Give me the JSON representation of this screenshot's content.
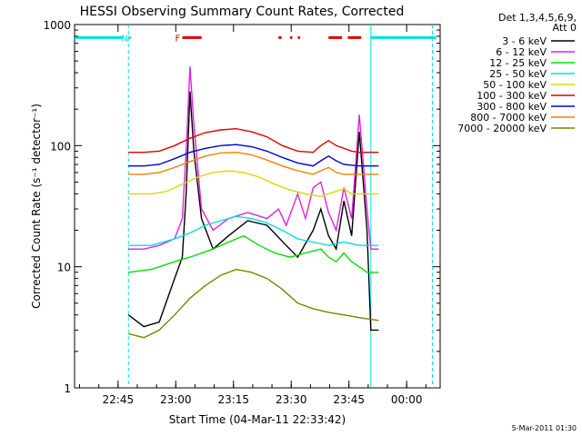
{
  "chart_data": {
    "type": "line",
    "title": "HESSI Observing Summary Count Rates, Corrected",
    "xlabel": "Start Time (04-Mar-11 22:33:42)",
    "ylabel": "Corrected Count Rate (s⁻¹ detector⁻¹)",
    "yscale": "log",
    "ylim": [
      1,
      1000
    ],
    "xlim_minutes_after_2233_42": [
      0,
      95
    ],
    "x_ticks": [
      {
        "label": "22:45",
        "t": 11.3
      },
      {
        "label": "23:00",
        "t": 26.3
      },
      {
        "label": "23:15",
        "t": 41.3
      },
      {
        "label": "23:30",
        "t": 56.3
      },
      {
        "label": "23:45",
        "t": 71.3
      },
      {
        "label": "00:00",
        "t": 86.3
      }
    ],
    "y_ticks": [
      {
        "label": "1",
        "v": 1
      },
      {
        "label": "10",
        "v": 10
      },
      {
        "label": "100",
        "v": 100
      },
      {
        "label": "1000",
        "v": 1000
      }
    ],
    "legend_header": [
      "Det 1,3,4,5,6,9,",
      "Att 0"
    ],
    "series": [
      {
        "name": "3 - 6 keV",
        "color": "#000000",
        "points": [
          [
            14,
            4
          ],
          [
            18,
            3.2
          ],
          [
            22,
            3.5
          ],
          [
            26,
            8
          ],
          [
            28,
            12
          ],
          [
            29,
            40
          ],
          [
            30,
            280
          ],
          [
            31,
            90
          ],
          [
            33,
            25
          ],
          [
            36,
            14
          ],
          [
            40,
            18
          ],
          [
            45,
            24
          ],
          [
            50,
            22
          ],
          [
            55,
            15
          ],
          [
            58,
            12
          ],
          [
            62,
            20
          ],
          [
            64,
            30
          ],
          [
            66,
            18
          ],
          [
            68,
            14
          ],
          [
            70,
            35
          ],
          [
            72,
            18
          ],
          [
            74,
            130
          ],
          [
            76,
            20
          ],
          [
            77,
            3
          ],
          [
            78,
            3
          ],
          [
            79,
            3
          ]
        ]
      },
      {
        "name": "6 - 12 keV",
        "color": "#e020e0",
        "points": [
          [
            14,
            14
          ],
          [
            18,
            14
          ],
          [
            22,
            15
          ],
          [
            26,
            17
          ],
          [
            28,
            25
          ],
          [
            29,
            90
          ],
          [
            30,
            450
          ],
          [
            31,
            150
          ],
          [
            33,
            30
          ],
          [
            36,
            20
          ],
          [
            40,
            25
          ],
          [
            45,
            28
          ],
          [
            50,
            25
          ],
          [
            53,
            30
          ],
          [
            55,
            22
          ],
          [
            58,
            40
          ],
          [
            60,
            25
          ],
          [
            62,
            45
          ],
          [
            64,
            50
          ],
          [
            66,
            28
          ],
          [
            68,
            20
          ],
          [
            70,
            45
          ],
          [
            72,
            25
          ],
          [
            74,
            180
          ],
          [
            76,
            30
          ],
          [
            77,
            14
          ],
          [
            79,
            14
          ]
        ]
      },
      {
        "name": "12 - 25 keV",
        "color": "#00e000",
        "points": [
          [
            14,
            9
          ],
          [
            20,
            9.5
          ],
          [
            26,
            11
          ],
          [
            30,
            12
          ],
          [
            36,
            14
          ],
          [
            40,
            16
          ],
          [
            44,
            18
          ],
          [
            48,
            15
          ],
          [
            52,
            13
          ],
          [
            56,
            12
          ],
          [
            60,
            13
          ],
          [
            64,
            14
          ],
          [
            66,
            12
          ],
          [
            68,
            11
          ],
          [
            70,
            13
          ],
          [
            72,
            11
          ],
          [
            74,
            10
          ],
          [
            76,
            9
          ],
          [
            79,
            9
          ]
        ]
      },
      {
        "name": "25 - 50 keV",
        "color": "#00e0e0",
        "points": [
          [
            14,
            15
          ],
          [
            20,
            15
          ],
          [
            26,
            17
          ],
          [
            30,
            19
          ],
          [
            34,
            22
          ],
          [
            38,
            24
          ],
          [
            42,
            26
          ],
          [
            46,
            25
          ],
          [
            50,
            23
          ],
          [
            54,
            20
          ],
          [
            58,
            17
          ],
          [
            62,
            16
          ],
          [
            66,
            15
          ],
          [
            70,
            16
          ],
          [
            74,
            15
          ],
          [
            79,
            15
          ]
        ]
      },
      {
        "name": "50 - 100 keV",
        "color": "#d8d800",
        "points": [
          [
            14,
            40
          ],
          [
            20,
            40
          ],
          [
            24,
            42
          ],
          [
            28,
            48
          ],
          [
            32,
            55
          ],
          [
            36,
            60
          ],
          [
            40,
            62
          ],
          [
            44,
            60
          ],
          [
            48,
            55
          ],
          [
            52,
            48
          ],
          [
            56,
            43
          ],
          [
            60,
            40
          ],
          [
            64,
            38
          ],
          [
            68,
            42
          ],
          [
            70,
            44
          ],
          [
            72,
            40
          ],
          [
            76,
            40
          ],
          [
            79,
            40
          ]
        ]
      },
      {
        "name": "100 - 300 keV",
        "color": "#e00000",
        "points": [
          [
            14,
            88
          ],
          [
            18,
            88
          ],
          [
            22,
            90
          ],
          [
            26,
            100
          ],
          [
            30,
            115
          ],
          [
            34,
            128
          ],
          [
            38,
            135
          ],
          [
            42,
            138
          ],
          [
            46,
            130
          ],
          [
            50,
            118
          ],
          [
            54,
            100
          ],
          [
            58,
            90
          ],
          [
            62,
            88
          ],
          [
            64,
            100
          ],
          [
            66,
            110
          ],
          [
            68,
            100
          ],
          [
            70,
            95
          ],
          [
            72,
            90
          ],
          [
            74,
            88
          ],
          [
            79,
            88
          ]
        ]
      },
      {
        "name": "300 - 800 keV",
        "color": "#0000e0",
        "points": [
          [
            14,
            68
          ],
          [
            18,
            68
          ],
          [
            22,
            70
          ],
          [
            26,
            78
          ],
          [
            30,
            88
          ],
          [
            34,
            95
          ],
          [
            38,
            100
          ],
          [
            42,
            102
          ],
          [
            46,
            98
          ],
          [
            50,
            90
          ],
          [
            54,
            80
          ],
          [
            58,
            72
          ],
          [
            62,
            68
          ],
          [
            64,
            75
          ],
          [
            66,
            82
          ],
          [
            68,
            75
          ],
          [
            70,
            70
          ],
          [
            74,
            68
          ],
          [
            79,
            68
          ]
        ]
      },
      {
        "name": "800 - 7000 keV",
        "color": "#f08000",
        "points": [
          [
            14,
            58
          ],
          [
            18,
            58
          ],
          [
            22,
            60
          ],
          [
            26,
            66
          ],
          [
            30,
            74
          ],
          [
            34,
            82
          ],
          [
            38,
            87
          ],
          [
            42,
            88
          ],
          [
            46,
            84
          ],
          [
            50,
            76
          ],
          [
            54,
            68
          ],
          [
            58,
            62
          ],
          [
            62,
            58
          ],
          [
            64,
            62
          ],
          [
            66,
            66
          ],
          [
            68,
            60
          ],
          [
            70,
            58
          ],
          [
            74,
            58
          ],
          [
            79,
            58
          ]
        ]
      },
      {
        "name": "7000 - 20000 keV",
        "color": "#808000",
        "points": [
          [
            14,
            2.8
          ],
          [
            18,
            2.6
          ],
          [
            22,
            3
          ],
          [
            26,
            4
          ],
          [
            30,
            5.5
          ],
          [
            34,
            7
          ],
          [
            38,
            8.5
          ],
          [
            42,
            9.5
          ],
          [
            46,
            9
          ],
          [
            50,
            8
          ],
          [
            54,
            6.5
          ],
          [
            58,
            5
          ],
          [
            62,
            4.5
          ],
          [
            66,
            4.2
          ],
          [
            70,
            4
          ],
          [
            74,
            3.8
          ],
          [
            79,
            3.6
          ]
        ]
      }
    ],
    "status_bars": [
      {
        "label": "",
        "color": "#00e0e0",
        "t0": 0,
        "t1": 12.5,
        "value": 780
      },
      {
        "label": "N",
        "color": "#00e0e0",
        "t0": 14,
        "t1": 14.6,
        "value": 780
      },
      {
        "label": "F",
        "color": "#e00000",
        "t0": 28,
        "t1": 33,
        "value": 780
      },
      {
        "label": "",
        "color": "#e00000",
        "t0": 53,
        "t1": 53.8,
        "value": 780
      },
      {
        "label": "",
        "color": "#e00000",
        "t0": 56,
        "t1": 56.6,
        "value": 780
      },
      {
        "label": "",
        "color": "#e00000",
        "t0": 58,
        "t1": 58.6,
        "value": 780
      },
      {
        "label": "",
        "color": "#e00000",
        "t0": 66,
        "t1": 69.5,
        "value": 780
      },
      {
        "label": "",
        "color": "#e00000",
        "t0": 71,
        "t1": 74.5,
        "value": 780
      },
      {
        "label": "",
        "color": "#00e0e0",
        "t0": 77,
        "t1": 94,
        "value": 780
      }
    ],
    "vertical_markers": [
      {
        "t": 14,
        "color": "#00e0e0",
        "style": "dashed"
      },
      {
        "t": 77,
        "color": "#00e0e0",
        "style": "solid"
      },
      {
        "t": 93,
        "color": "#00e0e0",
        "style": "dashed"
      }
    ],
    "footer_timestamp": "5-Mar-2011 01:30"
  }
}
